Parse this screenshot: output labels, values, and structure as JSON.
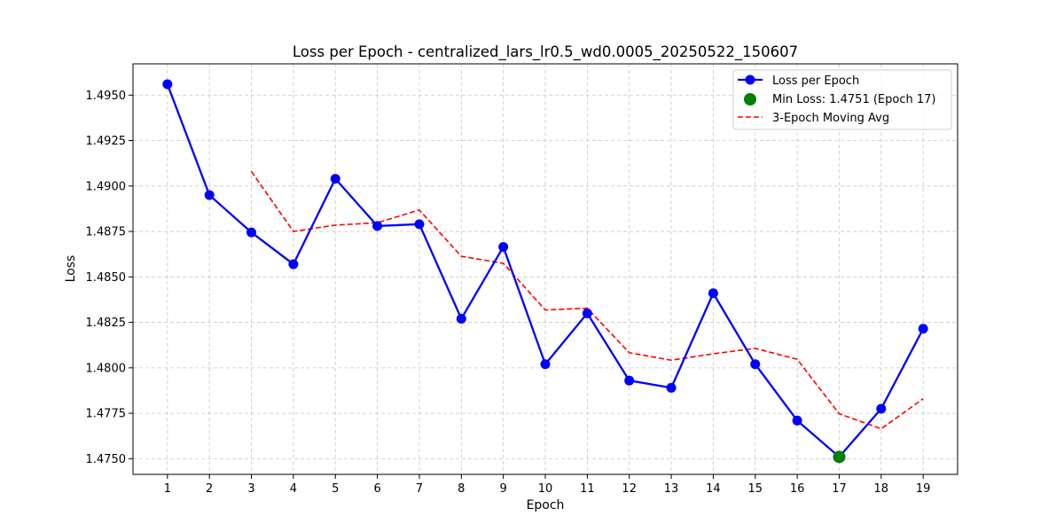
{
  "chart_data": {
    "type": "line",
    "title": "Loss per Epoch - centralized_lars_lr0.5_wd0.0005_20250522_150607",
    "xlabel": "Epoch",
    "ylabel": "Loss",
    "x": [
      1,
      2,
      3,
      4,
      5,
      6,
      7,
      8,
      9,
      10,
      11,
      12,
      13,
      14,
      15,
      16,
      17,
      18,
      19
    ],
    "xlim": [
      0.18,
      19.82
    ],
    "ylim": [
      1.47414,
      1.49672
    ],
    "y_ticks": [
      1.475,
      1.4775,
      1.48,
      1.4825,
      1.485,
      1.4875,
      1.49,
      1.4925,
      1.495
    ],
    "y_tick_labels": [
      "1.4750",
      "1.4775",
      "1.4800",
      "1.4825",
      "1.4850",
      "1.4875",
      "1.4900",
      "1.4925",
      "1.4950"
    ],
    "grid": true,
    "legend_position": "top-right",
    "series": [
      {
        "name": "Loss per Epoch",
        "color": "#0000ff",
        "style": "solid-line-circle-markers",
        "values": [
          1.4956,
          1.4895,
          1.48745,
          1.4857,
          1.4904,
          1.4878,
          1.4879,
          1.4827,
          1.48665,
          1.4802,
          1.483,
          1.4793,
          1.4789,
          1.4841,
          1.4802,
          1.4771,
          1.4751,
          1.47775,
          1.48215
        ]
      },
      {
        "name": "3-Epoch Moving Avg",
        "color": "#ff0000",
        "style": "dashed-line",
        "x": [
          3,
          4,
          5,
          6,
          7,
          8,
          9,
          10,
          11,
          12,
          13,
          14,
          15,
          16,
          17,
          18,
          19
        ],
        "values": [
          1.4908,
          1.4875,
          1.48785,
          1.48798,
          1.48868,
          1.48613,
          1.48575,
          1.48318,
          1.48328,
          1.48083,
          1.48042,
          1.48077,
          1.48107,
          1.48047,
          1.47747,
          1.47665,
          1.4783
        ]
      }
    ],
    "highlight": {
      "name": "Min Loss: 1.4751 (Epoch 17)",
      "x": 17,
      "y": 1.4751,
      "color": "#008000"
    }
  }
}
